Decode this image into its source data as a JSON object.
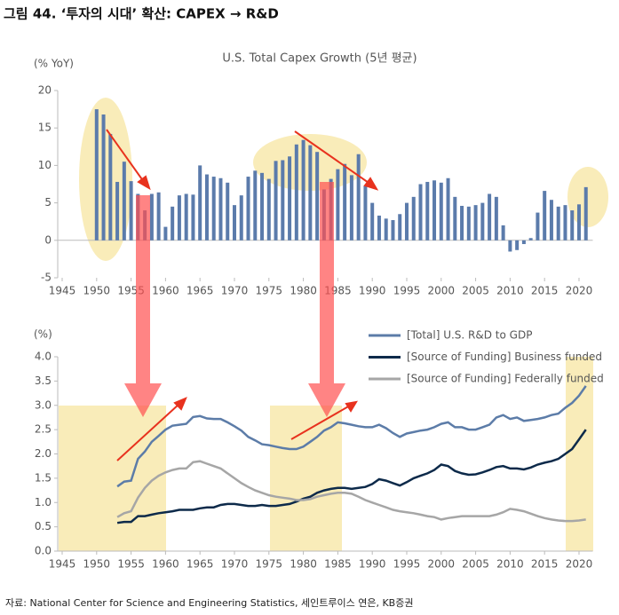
{
  "header": "그림 44. ‘투자의 시대’ 확산: CAPEX → R&D",
  "source": "자료: National Center for Science and Engineering Statistics, 세인트루이스 연은, KB증권",
  "chart_data": [
    {
      "type": "bar",
      "title": "U.S. Total Capex Growth (5년 평균)",
      "y_label": "(% YoY)",
      "color": "#5b7bab",
      "x": [
        1950,
        1951,
        1952,
        1953,
        1954,
        1955,
        1956,
        1957,
        1958,
        1959,
        1960,
        1961,
        1962,
        1963,
        1964,
        1965,
        1966,
        1967,
        1968,
        1969,
        1970,
        1971,
        1972,
        1973,
        1974,
        1975,
        1976,
        1977,
        1978,
        1979,
        1980,
        1981,
        1982,
        1983,
        1984,
        1985,
        1986,
        1987,
        1988,
        1989,
        1990,
        1991,
        1992,
        1993,
        1994,
        1995,
        1996,
        1997,
        1998,
        1999,
        2000,
        2001,
        2002,
        2003,
        2004,
        2005,
        2006,
        2007,
        2008,
        2009,
        2010,
        2011,
        2012,
        2013,
        2014,
        2015,
        2016,
        2017,
        2018,
        2019,
        2020,
        2021
      ],
      "values": [
        17.5,
        16.8,
        14.2,
        7.8,
        10.5,
        7.9,
        6.2,
        4.0,
        6.2,
        6.4,
        1.8,
        4.5,
        6.0,
        6.2,
        6.1,
        10.0,
        8.8,
        8.5,
        8.3,
        7.7,
        4.7,
        6.0,
        8.5,
        9.3,
        9.0,
        8.2,
        10.6,
        10.7,
        11.2,
        12.8,
        13.4,
        12.7,
        11.8,
        6.8,
        8.2,
        9.5,
        10.2,
        8.7,
        11.5,
        7.3,
        5.0,
        3.3,
        2.9,
        2.7,
        3.5,
        5.0,
        5.8,
        7.5,
        7.8,
        8.0,
        7.7,
        8.3,
        5.8,
        4.6,
        4.5,
        4.7,
        5.0,
        6.2,
        5.8,
        2.0,
        -1.5,
        -1.3,
        -0.5,
        0.3,
        3.7,
        6.6,
        5.4,
        4.5,
        4.7,
        4.0,
        4.8,
        7.1
      ],
      "xlim": [
        1945,
        2022
      ],
      "xticks": [
        1945,
        1950,
        1955,
        1960,
        1965,
        1970,
        1975,
        1980,
        1985,
        1990,
        1995,
        2000,
        2005,
        2010,
        2015,
        2020
      ],
      "ylim": [
        -5,
        20
      ],
      "yticks": [
        -5,
        0,
        5,
        10,
        15,
        20
      ]
    },
    {
      "type": "line",
      "y_label": "(%)",
      "legend": "top-right",
      "x": [
        1953,
        1954,
        1955,
        1956,
        1957,
        1958,
        1959,
        1960,
        1961,
        1962,
        1963,
        1964,
        1965,
        1966,
        1967,
        1968,
        1969,
        1970,
        1971,
        1972,
        1973,
        1974,
        1975,
        1976,
        1977,
        1978,
        1979,
        1980,
        1981,
        1982,
        1983,
        1984,
        1985,
        1986,
        1987,
        1988,
        1989,
        1990,
        1991,
        1992,
        1993,
        1994,
        1995,
        1996,
        1997,
        1998,
        1999,
        2000,
        2001,
        2002,
        2003,
        2004,
        2005,
        2006,
        2007,
        2008,
        2009,
        2010,
        2011,
        2012,
        2013,
        2014,
        2015,
        2016,
        2017,
        2018,
        2019,
        2020,
        2021
      ],
      "series": [
        {
          "name": "[Total] U.S. R&D to GDP",
          "color": "#5c7ca8",
          "values": [
            1.33,
            1.43,
            1.45,
            1.9,
            2.05,
            2.25,
            2.37,
            2.5,
            2.58,
            2.6,
            2.62,
            2.76,
            2.78,
            2.73,
            2.72,
            2.72,
            2.65,
            2.57,
            2.48,
            2.35,
            2.28,
            2.2,
            2.18,
            2.15,
            2.12,
            2.1,
            2.1,
            2.15,
            2.25,
            2.35,
            2.48,
            2.55,
            2.65,
            2.63,
            2.6,
            2.57,
            2.55,
            2.55,
            2.6,
            2.53,
            2.43,
            2.35,
            2.42,
            2.45,
            2.48,
            2.5,
            2.55,
            2.62,
            2.65,
            2.55,
            2.55,
            2.5,
            2.5,
            2.55,
            2.6,
            2.75,
            2.8,
            2.72,
            2.75,
            2.68,
            2.7,
            2.72,
            2.75,
            2.8,
            2.83,
            2.95,
            3.05,
            3.2,
            3.4
          ]
        },
        {
          "name": "[Source of Funding] Business funded",
          "color": "#0d2a4a",
          "values": [
            0.58,
            0.6,
            0.6,
            0.72,
            0.72,
            0.75,
            0.78,
            0.8,
            0.82,
            0.85,
            0.85,
            0.85,
            0.88,
            0.9,
            0.9,
            0.95,
            0.97,
            0.97,
            0.95,
            0.93,
            0.93,
            0.95,
            0.93,
            0.93,
            0.95,
            0.97,
            1.02,
            1.08,
            1.12,
            1.2,
            1.25,
            1.28,
            1.3,
            1.3,
            1.28,
            1.3,
            1.32,
            1.38,
            1.48,
            1.45,
            1.4,
            1.35,
            1.42,
            1.5,
            1.55,
            1.6,
            1.67,
            1.78,
            1.75,
            1.65,
            1.6,
            1.57,
            1.58,
            1.62,
            1.67,
            1.73,
            1.75,
            1.7,
            1.7,
            1.68,
            1.72,
            1.78,
            1.82,
            1.85,
            1.9,
            2.0,
            2.1,
            2.3,
            2.5
          ]
        },
        {
          "name": "[Source of Funding] Federally funded",
          "color": "#a6a6a6",
          "values": [
            0.7,
            0.78,
            0.82,
            1.1,
            1.3,
            1.45,
            1.55,
            1.62,
            1.67,
            1.7,
            1.7,
            1.83,
            1.85,
            1.8,
            1.75,
            1.7,
            1.6,
            1.5,
            1.4,
            1.32,
            1.25,
            1.2,
            1.15,
            1.12,
            1.1,
            1.08,
            1.05,
            1.05,
            1.07,
            1.12,
            1.15,
            1.18,
            1.2,
            1.2,
            1.18,
            1.12,
            1.05,
            1.0,
            0.95,
            0.9,
            0.85,
            0.82,
            0.8,
            0.78,
            0.75,
            0.72,
            0.7,
            0.65,
            0.68,
            0.7,
            0.72,
            0.72,
            0.72,
            0.72,
            0.72,
            0.75,
            0.8,
            0.87,
            0.85,
            0.82,
            0.77,
            0.72,
            0.68,
            0.65,
            0.63,
            0.62,
            0.62,
            0.63,
            0.65
          ]
        }
      ],
      "xlim": [
        1945,
        2022
      ],
      "xticks": [
        1945,
        1950,
        1955,
        1960,
        1965,
        1970,
        1975,
        1980,
        1985,
        1990,
        1995,
        2000,
        2005,
        2010,
        2015,
        2020
      ],
      "ylim": [
        0,
        4
      ],
      "yticks": [
        {
          "value": 0,
          "label": "0.0"
        },
        {
          "value": 0.5,
          "label": "0.5"
        },
        {
          "value": 1,
          "label": "1.0"
        },
        {
          "value": 1.5,
          "label": "1.5"
        },
        {
          "value": 2,
          "label": "2.0"
        },
        {
          "value": 2.5,
          "label": "2.5"
        },
        {
          "value": 3,
          "label": "3.0"
        },
        {
          "value": 3.5,
          "label": "3.5"
        },
        {
          "value": 4,
          "label": "4.0"
        }
      ]
    }
  ]
}
